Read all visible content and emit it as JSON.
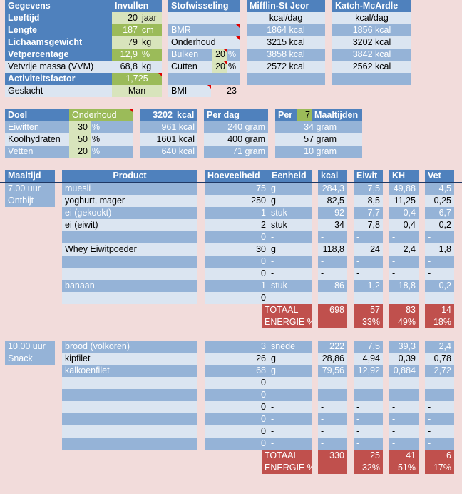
{
  "top": {
    "headers": {
      "gegevens": "Gegevens",
      "invullen": "Invullen",
      "stofwisseling": "Stofwisseling",
      "mifflin": "Mifflin-St Jeor",
      "katch": "Katch-McArdle"
    },
    "leeftijd": {
      "label": "Leeftijd",
      "value": "20",
      "unit": "jaar"
    },
    "lengte": {
      "label": "Lengte",
      "value": "187",
      "unit": "cm"
    },
    "gewicht": {
      "label": "Lichaamsgewicht",
      "value": "79",
      "unit": "kg"
    },
    "vet": {
      "label": "Vetpercentage",
      "value": "12,9",
      "unit": "%"
    },
    "vvm": {
      "label": "Vetvrije massa (VVM)",
      "value": "68,8",
      "unit": "kg"
    },
    "activiteit": {
      "label": "Activiteitsfactor",
      "value": "1,725"
    },
    "geslacht": {
      "label": "Geslacht",
      "value": "Man"
    },
    "stof": {
      "unit_label": {
        "mifflin": "kcal/dag",
        "katch": "kcal/dag"
      },
      "bmr": {
        "label": "BMR",
        "mifflin": "1864 kcal",
        "katch": "1856 kcal"
      },
      "onderhoud": {
        "label": "Onderhoud",
        "mifflin": "3215 kcal",
        "katch": "3202 kcal"
      },
      "bulken": {
        "label": "Bulken",
        "pct": "20",
        "unit": "%",
        "mifflin": "3858 kcal",
        "katch": "3842 kcal"
      },
      "cutten": {
        "label": "Cutten",
        "pct": "20",
        "unit": "%",
        "mifflin": "2572 kcal",
        "katch": "2562 kcal"
      },
      "bmi": {
        "label": "BMI",
        "value": "23"
      }
    }
  },
  "doel": {
    "label": "Doel",
    "value": "Onderhoud",
    "kcal": "3202",
    "kcal_unit": "kcal",
    "perdag": "Per dag",
    "per": "Per",
    "maaltijden_count": "7",
    "maaltijden": "Maaltijden",
    "rows": [
      {
        "name": "Eiwitten",
        "pct": "30",
        "unit": "%",
        "kcal": "961 kcal",
        "gram": "240 gram",
        "meal": "34 gram"
      },
      {
        "name": "Koolhydraten",
        "pct": "50",
        "unit": "%",
        "kcal": "1601 kcal",
        "gram": "400 gram",
        "meal": "57 gram"
      },
      {
        "name": "Vetten",
        "pct": "20",
        "unit": "%",
        "kcal": "640 kcal",
        "gram": "71 gram",
        "meal": "10 gram"
      }
    ]
  },
  "meals": {
    "headers": {
      "maaltijd": "Maaltijd",
      "product": "Product",
      "hoeveelheid": "Hoeveelheid",
      "eenheid": "Eenheid",
      "kcal": "kcal",
      "eiwit": "Eiwit",
      "kh": "KH",
      "vet": "Vet"
    },
    "m1": {
      "time": "7.00 uur",
      "name": "Ontbijt",
      "items": [
        {
          "product": "muesli",
          "qty": "75",
          "unit": "g",
          "kcal": "284,3",
          "eiwit": "7,5",
          "kh": "49,88",
          "vet": "4,5"
        },
        {
          "product": "yoghurt, mager",
          "qty": "250",
          "unit": "g",
          "kcal": "82,5",
          "eiwit": "8,5",
          "kh": "11,25",
          "vet": "0,25"
        },
        {
          "product": "ei (gekookt)",
          "qty": "1",
          "unit": "stuk",
          "kcal": "92",
          "eiwit": "7,7",
          "kh": "0,4",
          "vet": "6,7"
        },
        {
          "product": "ei (eiwit)",
          "qty": "2",
          "unit": "stuk",
          "kcal": "34",
          "eiwit": "7,8",
          "kh": "0,4",
          "vet": "0,2"
        },
        {
          "product": "",
          "qty": "0",
          "unit": "-",
          "kcal": "-",
          "eiwit": "-",
          "kh": "-",
          "vet": "-"
        },
        {
          "product": "Whey Eiwitpoeder",
          "qty": "30",
          "unit": "g",
          "kcal": "118,8",
          "eiwit": "24",
          "kh": "2,4",
          "vet": "1,8"
        },
        {
          "product": "",
          "qty": "0",
          "unit": "-",
          "kcal": "-",
          "eiwit": "-",
          "kh": "-",
          "vet": "-"
        },
        {
          "product": "",
          "qty": "0",
          "unit": "-",
          "kcal": "-",
          "eiwit": "-",
          "kh": "-",
          "vet": "-"
        },
        {
          "product": "banaan",
          "qty": "1",
          "unit": "stuk",
          "kcal": "86",
          "eiwit": "1,2",
          "kh": "18,8",
          "vet": "0,2"
        },
        {
          "product": "",
          "qty": "0",
          "unit": "-",
          "kcal": "-",
          "eiwit": "-",
          "kh": "-",
          "vet": "-"
        }
      ],
      "totaal": {
        "label": "TOTAAL",
        "kcal": "698",
        "eiwit": "57",
        "kh": "83",
        "vet": "14"
      },
      "energie": {
        "label": "ENERGIE %",
        "eiwit": "33%",
        "kh": "49%",
        "vet": "18%"
      }
    },
    "m2": {
      "time": "10.00 uur",
      "name": "Snack",
      "items": [
        {
          "product": "brood (volkoren)",
          "qty": "3",
          "unit": "snede",
          "kcal": "222",
          "eiwit": "7,5",
          "kh": "39,3",
          "vet": "2,4"
        },
        {
          "product": "kipfilet",
          "qty": "26",
          "unit": "g",
          "kcal": "28,86",
          "eiwit": "4,94",
          "kh": "0,39",
          "vet": "0,78"
        },
        {
          "product": "kalkoenfilet",
          "qty": "68",
          "unit": "g",
          "kcal": "79,56",
          "eiwit": "12,92",
          "kh": "0,884",
          "vet": "2,72"
        },
        {
          "product": "",
          "qty": "0",
          "unit": "-",
          "kcal": "-",
          "eiwit": "-",
          "kh": "-",
          "vet": "-"
        },
        {
          "product": "",
          "qty": "0",
          "unit": "-",
          "kcal": "-",
          "eiwit": "-",
          "kh": "-",
          "vet": "-"
        },
        {
          "product": "",
          "qty": "0",
          "unit": "-",
          "kcal": "-",
          "eiwit": "-",
          "kh": "-",
          "vet": "-"
        },
        {
          "product": "",
          "qty": "0",
          "unit": "-",
          "kcal": "-",
          "eiwit": "-",
          "kh": "-",
          "vet": "-"
        },
        {
          "product": "",
          "qty": "0",
          "unit": "-",
          "kcal": "-",
          "eiwit": "-",
          "kh": "-",
          "vet": "-"
        },
        {
          "product": "",
          "qty": "0",
          "unit": "-",
          "kcal": "-",
          "eiwit": "-",
          "kh": "-",
          "vet": "-"
        }
      ],
      "totaal": {
        "label": "TOTAAL",
        "kcal": "330",
        "eiwit": "25",
        "kh": "41",
        "vet": "6"
      },
      "energie": {
        "label": "ENERGIE %",
        "eiwit": "32%",
        "kh": "51%",
        "vet": "17%"
      }
    }
  }
}
